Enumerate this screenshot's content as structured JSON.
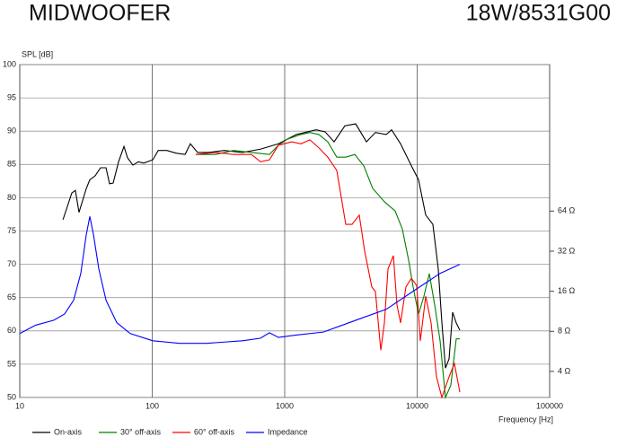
{
  "chart_data": {
    "type": "line",
    "title": "MIDWOOFER",
    "subtitle": "18W/8531G00",
    "y_label": "SPL [dB]",
    "x_label": "Frequency [Hz]",
    "x_scale": "log",
    "y2_scale": "log",
    "grid": true,
    "legend": "bottom",
    "xlim": [
      10,
      100000
    ],
    "xticks": [
      10,
      100,
      1000,
      10000,
      100000
    ],
    "ylim": [
      50,
      100
    ],
    "yticks": [
      50,
      55,
      60,
      65,
      70,
      75,
      80,
      85,
      90,
      95,
      100
    ],
    "y2lim": [
      2.55,
      806
    ],
    "y2ticks": [
      {
        "value": 4,
        "label": "4 Ω"
      },
      {
        "value": 8,
        "label": "8 Ω"
      },
      {
        "value": 16,
        "label": "16 Ω"
      },
      {
        "value": 32,
        "label": "32 Ω"
      },
      {
        "value": 64,
        "label": "64 Ω"
      }
    ],
    "series": [
      {
        "name": "On-axis",
        "color": "#000000",
        "x": [
          21.2,
          24.7,
          26.3,
          28.0,
          31.8,
          33.8,
          37.1,
          40.7,
          44.8,
          47.6,
          50.7,
          55.7,
          61.2,
          65.1,
          71.5,
          78.5,
          86.2,
          101,
          111,
          129,
          151,
          177,
          194,
          220,
          265,
          351,
          480,
          656,
          897,
          1225,
          1726,
          2018,
          2360,
          2845,
          3433,
          4140,
          4840,
          5837,
          6410,
          7493,
          9040,
          10240,
          11600,
          13140,
          14430,
          15370,
          16350,
          17410,
          18520,
          19720,
          20990
        ],
        "values": [
          76.7,
          80.7,
          81.1,
          77.8,
          81.4,
          82.7,
          83.3,
          84.5,
          84.5,
          82.1,
          82.2,
          85.4,
          87.7,
          86.0,
          84.9,
          85.4,
          85.2,
          85.7,
          87.1,
          87.1,
          86.7,
          86.5,
          88.1,
          86.8,
          86.8,
          87.1,
          86.8,
          87.3,
          88.1,
          89.5,
          90.2,
          89.9,
          88.4,
          90.8,
          91.1,
          88.4,
          89.8,
          89.5,
          90.2,
          88.1,
          84.8,
          82.7,
          77.4,
          76.0,
          69.3,
          61.2,
          54.4,
          55.8,
          62.8,
          61.2,
          60.1
        ]
      },
      {
        "name": "30° off-axis",
        "color": "#008000",
        "x": [
          213,
          300,
          411,
          561,
          767,
          897,
          1048,
          1324,
          1549,
          1810,
          2115,
          2473,
          2890,
          3379,
          3950,
          4617,
          5656,
          6823,
          7727,
          8624,
          9322,
          10240,
          11240,
          12350,
          13560,
          14900,
          16350,
          17940,
          19720,
          20990
        ],
        "values": [
          86.5,
          86.5,
          87.1,
          86.8,
          86.5,
          87.9,
          88.8,
          89.5,
          89.8,
          89.5,
          88.4,
          86.1,
          86.1,
          86.5,
          84.8,
          81.4,
          79.4,
          78.0,
          75.3,
          70.6,
          66.6,
          62.5,
          65.2,
          68.6,
          63.9,
          58.5,
          50,
          51.8,
          58.8,
          58.8
        ]
      },
      {
        "name": "60° off-axis",
        "color": "#ff0000",
        "x": [
          213,
          300,
          411,
          561,
          656,
          767,
          897,
          1133,
          1324,
          1549,
          1810,
          2115,
          2473,
          2890,
          3223,
          3653,
          4013,
          4546,
          4840,
          5315,
          5656,
          6022,
          6612,
          7040,
          7493,
          8225,
          9040,
          9920,
          10560,
          11600,
          12740,
          13990,
          15370,
          17410,
          19100,
          20990
        ],
        "values": [
          86.5,
          86.8,
          86.5,
          86.5,
          85.4,
          85.7,
          87.9,
          88.4,
          88.1,
          88.7,
          87.5,
          86.1,
          84.1,
          76.0,
          76.0,
          77.4,
          72.0,
          66.6,
          65.9,
          57.1,
          61.2,
          69.3,
          71.3,
          63.9,
          61.2,
          66.6,
          67.9,
          66.8,
          58.5,
          65.2,
          61.2,
          53.1,
          50,
          53.1,
          55.1,
          50.8
        ]
      },
      {
        "name": "Impedance",
        "color": "#0000ff",
        "axis": "y2",
        "x": [
          10,
          13.2,
          18.1,
          21.8,
          25.5,
          28.9,
          31.8,
          33.8,
          36.0,
          39.5,
          44.8,
          54,
          68.2,
          101,
          161,
          257,
          480,
          656,
          767,
          897,
          1225,
          1957,
          3653,
          5837,
          9322,
          14900,
          20990
        ],
        "values": [
          7.7,
          8.9,
          9.7,
          10.8,
          13.7,
          21.8,
          42.7,
          58.3,
          42.7,
          23.6,
          13.7,
          9.3,
          7.7,
          6.8,
          6.5,
          6.5,
          6.8,
          7.1,
          7.8,
          7.2,
          7.5,
          7.9,
          9.9,
          11.7,
          16,
          21.8,
          25.5
        ]
      }
    ]
  }
}
